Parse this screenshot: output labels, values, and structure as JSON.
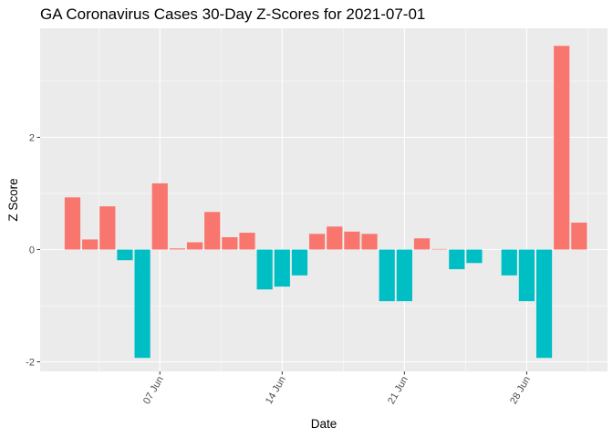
{
  "chart_data": {
    "type": "bar",
    "title": "GA Coronavirus Cases 30-Day Z-Scores for 2021-07-01",
    "xlabel": "Date",
    "ylabel": "Z Score",
    "dates": [
      "2021-06-02",
      "2021-06-03",
      "2021-06-04",
      "2021-06-05",
      "2021-06-06",
      "2021-06-07",
      "2021-06-08",
      "2021-06-09",
      "2021-06-10",
      "2021-06-11",
      "2021-06-12",
      "2021-06-13",
      "2021-06-14",
      "2021-06-15",
      "2021-06-16",
      "2021-06-17",
      "2021-06-18",
      "2021-06-19",
      "2021-06-20",
      "2021-06-21",
      "2021-06-22",
      "2021-06-23",
      "2021-06-24",
      "2021-06-25",
      "2021-06-26",
      "2021-06-27",
      "2021-06-28",
      "2021-06-29",
      "2021-06-30",
      "2021-07-01"
    ],
    "values": [
      0.93,
      0.18,
      0.77,
      -0.19,
      -1.93,
      1.18,
      0.02,
      0.13,
      0.67,
      0.22,
      0.3,
      -0.71,
      -0.66,
      -0.46,
      0.28,
      0.41,
      0.32,
      0.28,
      -0.92,
      -0.92,
      0.2,
      0.01,
      -0.35,
      -0.24,
      0.0,
      -0.46,
      -0.92,
      -1.93,
      3.63,
      0.48
    ],
    "positive_color": "#F8766D",
    "negative_color": "#00BFC4",
    "x_ticks": [
      {
        "date": "2021-06-07",
        "label": "07 Jun"
      },
      {
        "date": "2021-06-14",
        "label": "14 Jun"
      },
      {
        "date": "2021-06-21",
        "label": "21 Jun"
      },
      {
        "date": "2021-06-28",
        "label": "28 Jun"
      }
    ],
    "y_ticks": [
      -2,
      0,
      2
    ],
    "ylim": [
      -2.2,
      4.0
    ],
    "grid": true,
    "legend": "none"
  }
}
